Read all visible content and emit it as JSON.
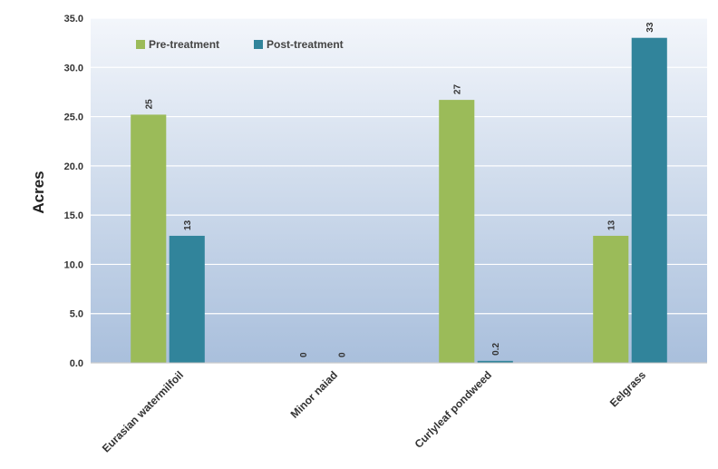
{
  "chart_data": {
    "type": "bar",
    "title": "",
    "xlabel": "",
    "ylabel": "Acres",
    "ylim": [
      0,
      35
    ],
    "ytick_step": 5,
    "ytick_format": "0.0",
    "grid": true,
    "legend_position": "top-left",
    "categories": [
      "Eurasian watermilfoil",
      "Minor naiad",
      "Curlyleaf pondweed",
      "Eelgrass"
    ],
    "series": [
      {
        "name": "Pre-treatment",
        "color": "#9bbb59",
        "values": [
          25.2,
          0,
          26.7,
          12.9
        ],
        "labels": [
          "25",
          "0",
          "27",
          "13"
        ]
      },
      {
        "name": "Post-treatment",
        "color": "#31849b",
        "values": [
          12.9,
          0,
          0.2,
          33
        ],
        "labels": [
          "13",
          "0",
          "0.2",
          "33"
        ]
      }
    ]
  }
}
